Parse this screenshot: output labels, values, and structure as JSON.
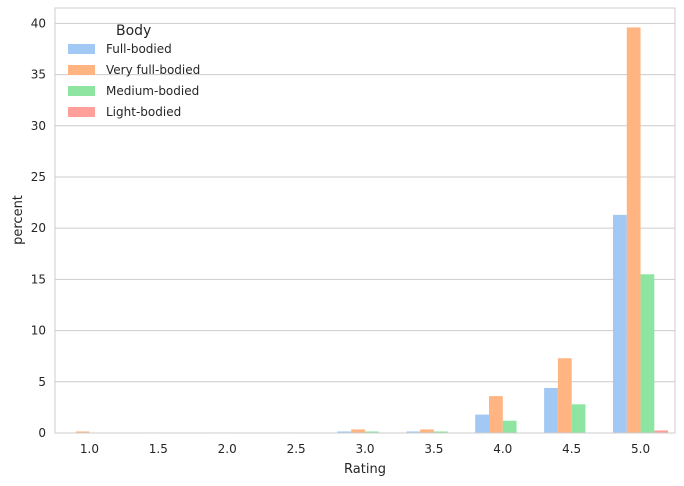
{
  "chart_data": {
    "type": "bar",
    "title": "",
    "xlabel": "Rating",
    "ylabel": "percent",
    "categories": [
      "1.0",
      "1.5",
      "2.0",
      "2.5",
      "3.0",
      "3.5",
      "4.0",
      "4.5",
      "5.0"
    ],
    "ylim": [
      0,
      41.5
    ],
    "yticks": [
      "0",
      "5",
      "10",
      "15",
      "20",
      "25",
      "30",
      "35",
      "40"
    ],
    "grid": "horizontal",
    "legend": {
      "title": "Body",
      "placement": "top-left"
    },
    "series": [
      {
        "name": "Full-bodied",
        "color": "#a1c9f4",
        "values": [
          0.0,
          0.0,
          0.0,
          0.0,
          0.15,
          0.15,
          1.8,
          4.4,
          21.3
        ]
      },
      {
        "name": "Very full-bodied",
        "color": "#ffb482",
        "values": [
          0.15,
          0.05,
          0.05,
          0.05,
          0.35,
          0.35,
          3.6,
          7.3,
          39.6
        ]
      },
      {
        "name": "Medium-bodied",
        "color": "#8de5a1",
        "values": [
          0.0,
          0.0,
          0.0,
          0.0,
          0.15,
          0.15,
          1.2,
          2.8,
          15.5
        ]
      },
      {
        "name": "Light-bodied",
        "color": "#ff9f9b",
        "values": [
          0.0,
          0.0,
          0.0,
          0.0,
          0.0,
          0.0,
          0.0,
          0.0,
          0.25
        ]
      }
    ]
  }
}
